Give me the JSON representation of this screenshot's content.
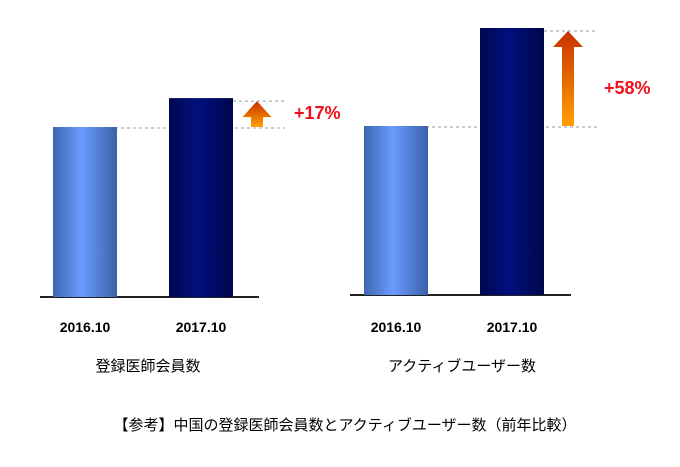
{
  "chart_data": [
    {
      "type": "bar",
      "title": "登録医師会員数",
      "categories": [
        "2016.10",
        "2017.10"
      ],
      "values": [
        100,
        117
      ],
      "annotation": "+17%",
      "colors": [
        "#5b8fe8",
        "#000a6e"
      ],
      "arrow_color": "#f08000",
      "grid": false
    },
    {
      "type": "bar",
      "title": "アクティブユーザー数",
      "categories": [
        "2016.10",
        "2017.10"
      ],
      "values": [
        100,
        158
      ],
      "annotation": "+58%",
      "colors": [
        "#5b8fe8",
        "#000a6e"
      ],
      "arrow_color": "#f08000",
      "grid": false
    }
  ],
  "caption": "【参考】中国の登録医師会員数とアクティブユーザー数（前年比較）"
}
